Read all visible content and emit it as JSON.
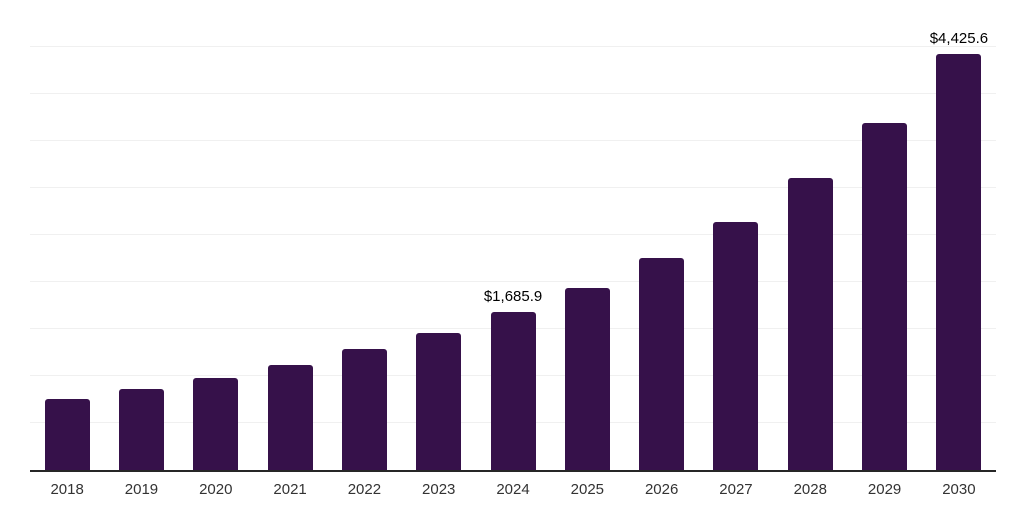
{
  "chart_data": {
    "type": "bar",
    "title": "",
    "xlabel": "",
    "ylabel": "",
    "categories": [
      "2018",
      "2019",
      "2020",
      "2021",
      "2022",
      "2023",
      "2024",
      "2025",
      "2026",
      "2027",
      "2028",
      "2029",
      "2030"
    ],
    "values": [
      760,
      865,
      980,
      1120,
      1285,
      1455,
      1685.9,
      1935,
      2255,
      2640,
      3105,
      3690,
      4425.6
    ],
    "data_labels": [
      "",
      "",
      "",
      "",
      "",
      "",
      "$1,685.9",
      "",
      "",
      "",
      "",
      "",
      "$4,425.6"
    ],
    "ylim": [
      0,
      5000
    ],
    "ytick_step": 500,
    "grid": "horizontal",
    "legend": "none",
    "colors": {
      "bar": "#36114A",
      "axis": "#262626",
      "grid": "#F0F0F0",
      "tick_label": "#333333",
      "data_label": "#000000",
      "background": "#FFFFFF"
    }
  }
}
